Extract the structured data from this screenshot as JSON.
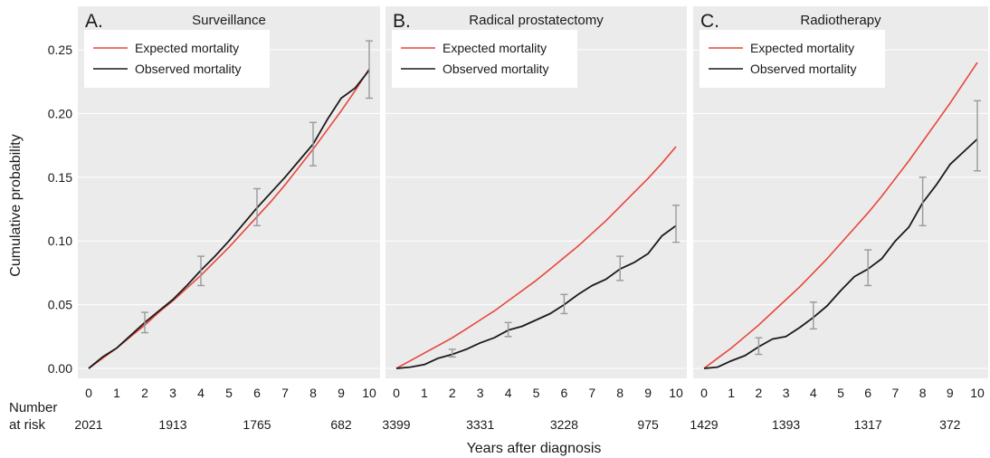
{
  "chart_data": [
    {
      "type": "line",
      "panel_label": "A.",
      "title": "Surveillance",
      "x": [
        0,
        0.5,
        1,
        1.5,
        2,
        2.5,
        3,
        3.5,
        4,
        4.5,
        5,
        5.5,
        6,
        6.5,
        7,
        7.5,
        8,
        8.5,
        9,
        9.5,
        10
      ],
      "series": [
        {
          "name": "Expected mortality",
          "color": "#e8463a",
          "values": [
            0.0,
            0.008,
            0.016,
            0.025,
            0.034,
            0.044,
            0.053,
            0.063,
            0.073,
            0.084,
            0.095,
            0.107,
            0.119,
            0.131,
            0.144,
            0.158,
            0.172,
            0.187,
            0.202,
            0.218,
            0.235
          ]
        },
        {
          "name": "Observed mortality",
          "color": "#1a1a1a",
          "values": [
            0.0,
            0.009,
            0.016,
            0.026,
            0.036,
            0.045,
            0.054,
            0.065,
            0.077,
            0.088,
            0.1,
            0.113,
            0.126,
            0.138,
            0.15,
            0.163,
            0.176,
            0.195,
            0.212,
            0.22,
            0.234
          ]
        }
      ],
      "error_bars": [
        {
          "x": 2,
          "low": 0.028,
          "high": 0.044
        },
        {
          "x": 4,
          "low": 0.065,
          "high": 0.088
        },
        {
          "x": 6,
          "low": 0.112,
          "high": 0.141
        },
        {
          "x": 8,
          "low": 0.159,
          "high": 0.193
        },
        {
          "x": 10,
          "low": 0.212,
          "high": 0.257
        }
      ],
      "risk": [
        {
          "x": 0,
          "label": "2021"
        },
        {
          "x": 3,
          "label": "1913"
        },
        {
          "x": 6,
          "label": "1765"
        },
        {
          "x": 9,
          "label": "682"
        }
      ]
    },
    {
      "type": "line",
      "panel_label": "B.",
      "title": "Radical prostatectomy",
      "x": [
        0,
        0.5,
        1,
        1.5,
        2,
        2.5,
        3,
        3.5,
        4,
        4.5,
        5,
        5.5,
        6,
        6.5,
        7,
        7.5,
        8,
        8.5,
        9,
        9.5,
        10
      ],
      "series": [
        {
          "name": "Expected mortality",
          "color": "#e8463a",
          "values": [
            0.0,
            0.006,
            0.012,
            0.018,
            0.024,
            0.031,
            0.038,
            0.045,
            0.053,
            0.061,
            0.069,
            0.078,
            0.087,
            0.096,
            0.106,
            0.116,
            0.127,
            0.138,
            0.149,
            0.161,
            0.174
          ]
        },
        {
          "name": "Observed mortality",
          "color": "#1a1a1a",
          "values": [
            0.0,
            0.001,
            0.003,
            0.008,
            0.011,
            0.015,
            0.02,
            0.024,
            0.03,
            0.033,
            0.038,
            0.043,
            0.05,
            0.058,
            0.065,
            0.07,
            0.078,
            0.083,
            0.09,
            0.104,
            0.112
          ]
        }
      ],
      "error_bars": [
        {
          "x": 2,
          "low": 0.009,
          "high": 0.015
        },
        {
          "x": 4,
          "low": 0.025,
          "high": 0.036
        },
        {
          "x": 6,
          "low": 0.043,
          "high": 0.058
        },
        {
          "x": 8,
          "low": 0.069,
          "high": 0.088
        },
        {
          "x": 10,
          "low": 0.099,
          "high": 0.128
        }
      ],
      "risk": [
        {
          "x": 0,
          "label": "3399"
        },
        {
          "x": 3,
          "label": "3331"
        },
        {
          "x": 6,
          "label": "3228"
        },
        {
          "x": 9,
          "label": "975"
        }
      ]
    },
    {
      "type": "line",
      "panel_label": "C.",
      "title": "Radiotherapy",
      "x": [
        0,
        0.5,
        1,
        1.5,
        2,
        2.5,
        3,
        3.5,
        4,
        4.5,
        5,
        5.5,
        6,
        6.5,
        7,
        7.5,
        8,
        8.5,
        9,
        9.5,
        10
      ],
      "series": [
        {
          "name": "Expected mortality",
          "color": "#e8463a",
          "values": [
            0.0,
            0.008,
            0.016,
            0.025,
            0.034,
            0.044,
            0.054,
            0.064,
            0.075,
            0.086,
            0.098,
            0.11,
            0.122,
            0.135,
            0.149,
            0.163,
            0.178,
            0.193,
            0.208,
            0.224,
            0.24
          ]
        },
        {
          "name": "Observed mortality",
          "color": "#1a1a1a",
          "values": [
            0.0,
            0.001,
            0.006,
            0.01,
            0.017,
            0.023,
            0.025,
            0.032,
            0.04,
            0.049,
            0.061,
            0.072,
            0.078,
            0.086,
            0.1,
            0.111,
            0.13,
            0.144,
            0.16,
            0.17,
            0.18
          ]
        }
      ],
      "error_bars": [
        {
          "x": 2,
          "low": 0.011,
          "high": 0.024
        },
        {
          "x": 4,
          "low": 0.031,
          "high": 0.052
        },
        {
          "x": 6,
          "low": 0.065,
          "high": 0.093
        },
        {
          "x": 8,
          "low": 0.112,
          "high": 0.15
        },
        {
          "x": 10,
          "low": 0.155,
          "high": 0.21
        }
      ],
      "risk": [
        {
          "x": 0,
          "label": "1429"
        },
        {
          "x": 3,
          "label": "1393"
        },
        {
          "x": 6,
          "label": "1317"
        },
        {
          "x": 9,
          "label": "372"
        }
      ]
    }
  ],
  "shared": {
    "ylabel": "Cumulative probability",
    "xlabel": "Years after diagnosis",
    "risk_label_line1": "Number",
    "risk_label_line2": "at risk",
    "xlim": [
      0,
      10
    ],
    "ylim": [
      0,
      0.25
    ],
    "x_ticks": [
      "0",
      "1",
      "2",
      "3",
      "4",
      "5",
      "6",
      "7",
      "8",
      "9",
      "10"
    ],
    "y_ticks": [
      0,
      0.05,
      0.1,
      0.15,
      0.2,
      0.25
    ],
    "y_tick_labels": [
      "0.00",
      "0.05",
      "0.10",
      "0.15",
      "0.20",
      "0.25"
    ],
    "legend_position": "top-left",
    "grid": true,
    "panel_background": "#ebebeb",
    "grid_color": "#ffffff",
    "errorbar_color": "#999999"
  }
}
